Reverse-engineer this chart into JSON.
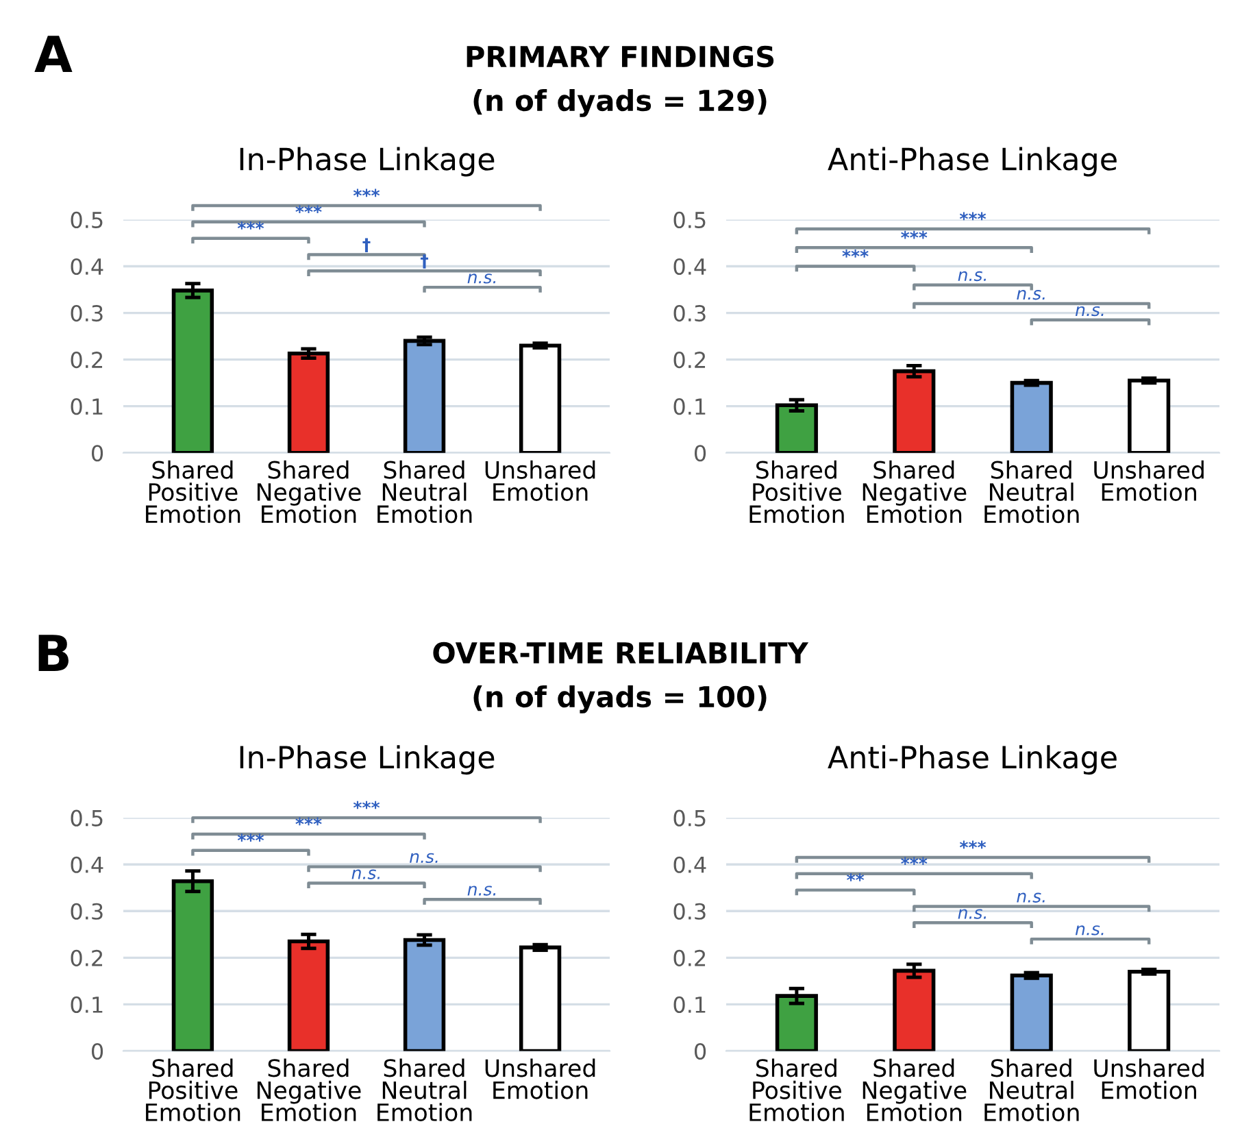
{
  "chart_data": [
    {
      "type": "bar",
      "title": "In-Phase Linkage",
      "categories": [
        "Shared\nPositive\nEmotion",
        "Shared\nNegative\nEmotion",
        "Shared\nNeutral\nEmotion",
        "Unshared\nEmotion"
      ],
      "values": [
        0.348,
        0.213,
        0.24,
        0.23
      ],
      "errors": [
        0.015,
        0.01,
        0.008,
        0.005
      ],
      "colors": [
        "#3fa142",
        "#e8302a",
        "#7aa3d8",
        "#ffffff"
      ],
      "ylim": [
        0,
        0.5
      ],
      "yticks": [
        0,
        0.1,
        0.2,
        0.3,
        0.4,
        0.5
      ],
      "grid": "y",
      "annotations": [
        "A",
        "PRIMARY FINDINGS",
        "(n of dyads = 129)",
        "***",
        "***",
        "***",
        "†",
        "†",
        "n.s."
      ]
    },
    {
      "type": "bar",
      "title": "Anti-Phase Linkage",
      "categories": [
        "Shared\nPositive\nEmotion",
        "Shared\nNegative\nEmotion",
        "Shared\nNeutral\nEmotion",
        "Unshared\nEmotion"
      ],
      "values": [
        0.102,
        0.175,
        0.15,
        0.155
      ],
      "errors": [
        0.012,
        0.012,
        0.005,
        0.005
      ],
      "colors": [
        "#3fa142",
        "#e8302a",
        "#7aa3d8",
        "#ffffff"
      ],
      "ylim": [
        0,
        0.5
      ],
      "yticks": [
        0,
        0.1,
        0.2,
        0.3,
        0.4,
        0.5
      ],
      "grid": "y",
      "annotations": [
        "***",
        "***",
        "***",
        "n.s.",
        "n.s.",
        "n.s."
      ]
    },
    {
      "type": "bar",
      "title": "In-Phase Linkage",
      "categories": [
        "Shared\nPositive\nEmotion",
        "Shared\nNegative\nEmotion",
        "Shared\nNeutral\nEmotion",
        "Unshared\nEmotion"
      ],
      "values": [
        0.364,
        0.235,
        0.238,
        0.222
      ],
      "errors": [
        0.022,
        0.015,
        0.011,
        0.006
      ],
      "colors": [
        "#3fa142",
        "#e8302a",
        "#7aa3d8",
        "#ffffff"
      ],
      "ylim": [
        0,
        0.5
      ],
      "yticks": [
        0,
        0.1,
        0.2,
        0.3,
        0.4,
        0.5
      ],
      "grid": "y",
      "annotations": [
        "B",
        "OVER-TIME RELIABILITY",
        "(n of dyads = 100)",
        "***",
        "***",
        "***",
        "n.s.",
        "n.s.",
        "n.s."
      ]
    },
    {
      "type": "bar",
      "title": "Anti-Phase Linkage",
      "categories": [
        "Shared\nPositive\nEmotion",
        "Shared\nNegative\nEmotion",
        "Shared\nNeutral\nEmotion",
        "Unshared\nEmotion"
      ],
      "values": [
        0.118,
        0.172,
        0.162,
        0.17
      ],
      "errors": [
        0.016,
        0.014,
        0.006,
        0.005
      ],
      "colors": [
        "#3fa142",
        "#e8302a",
        "#7aa3d8",
        "#ffffff"
      ],
      "ylim": [
        0,
        0.5
      ],
      "yticks": [
        0,
        0.1,
        0.2,
        0.3,
        0.4,
        0.5
      ],
      "grid": "y",
      "annotations": [
        "***",
        "***",
        "**",
        "n.s.",
        "n.s.",
        "n.s."
      ]
    }
  ]
}
